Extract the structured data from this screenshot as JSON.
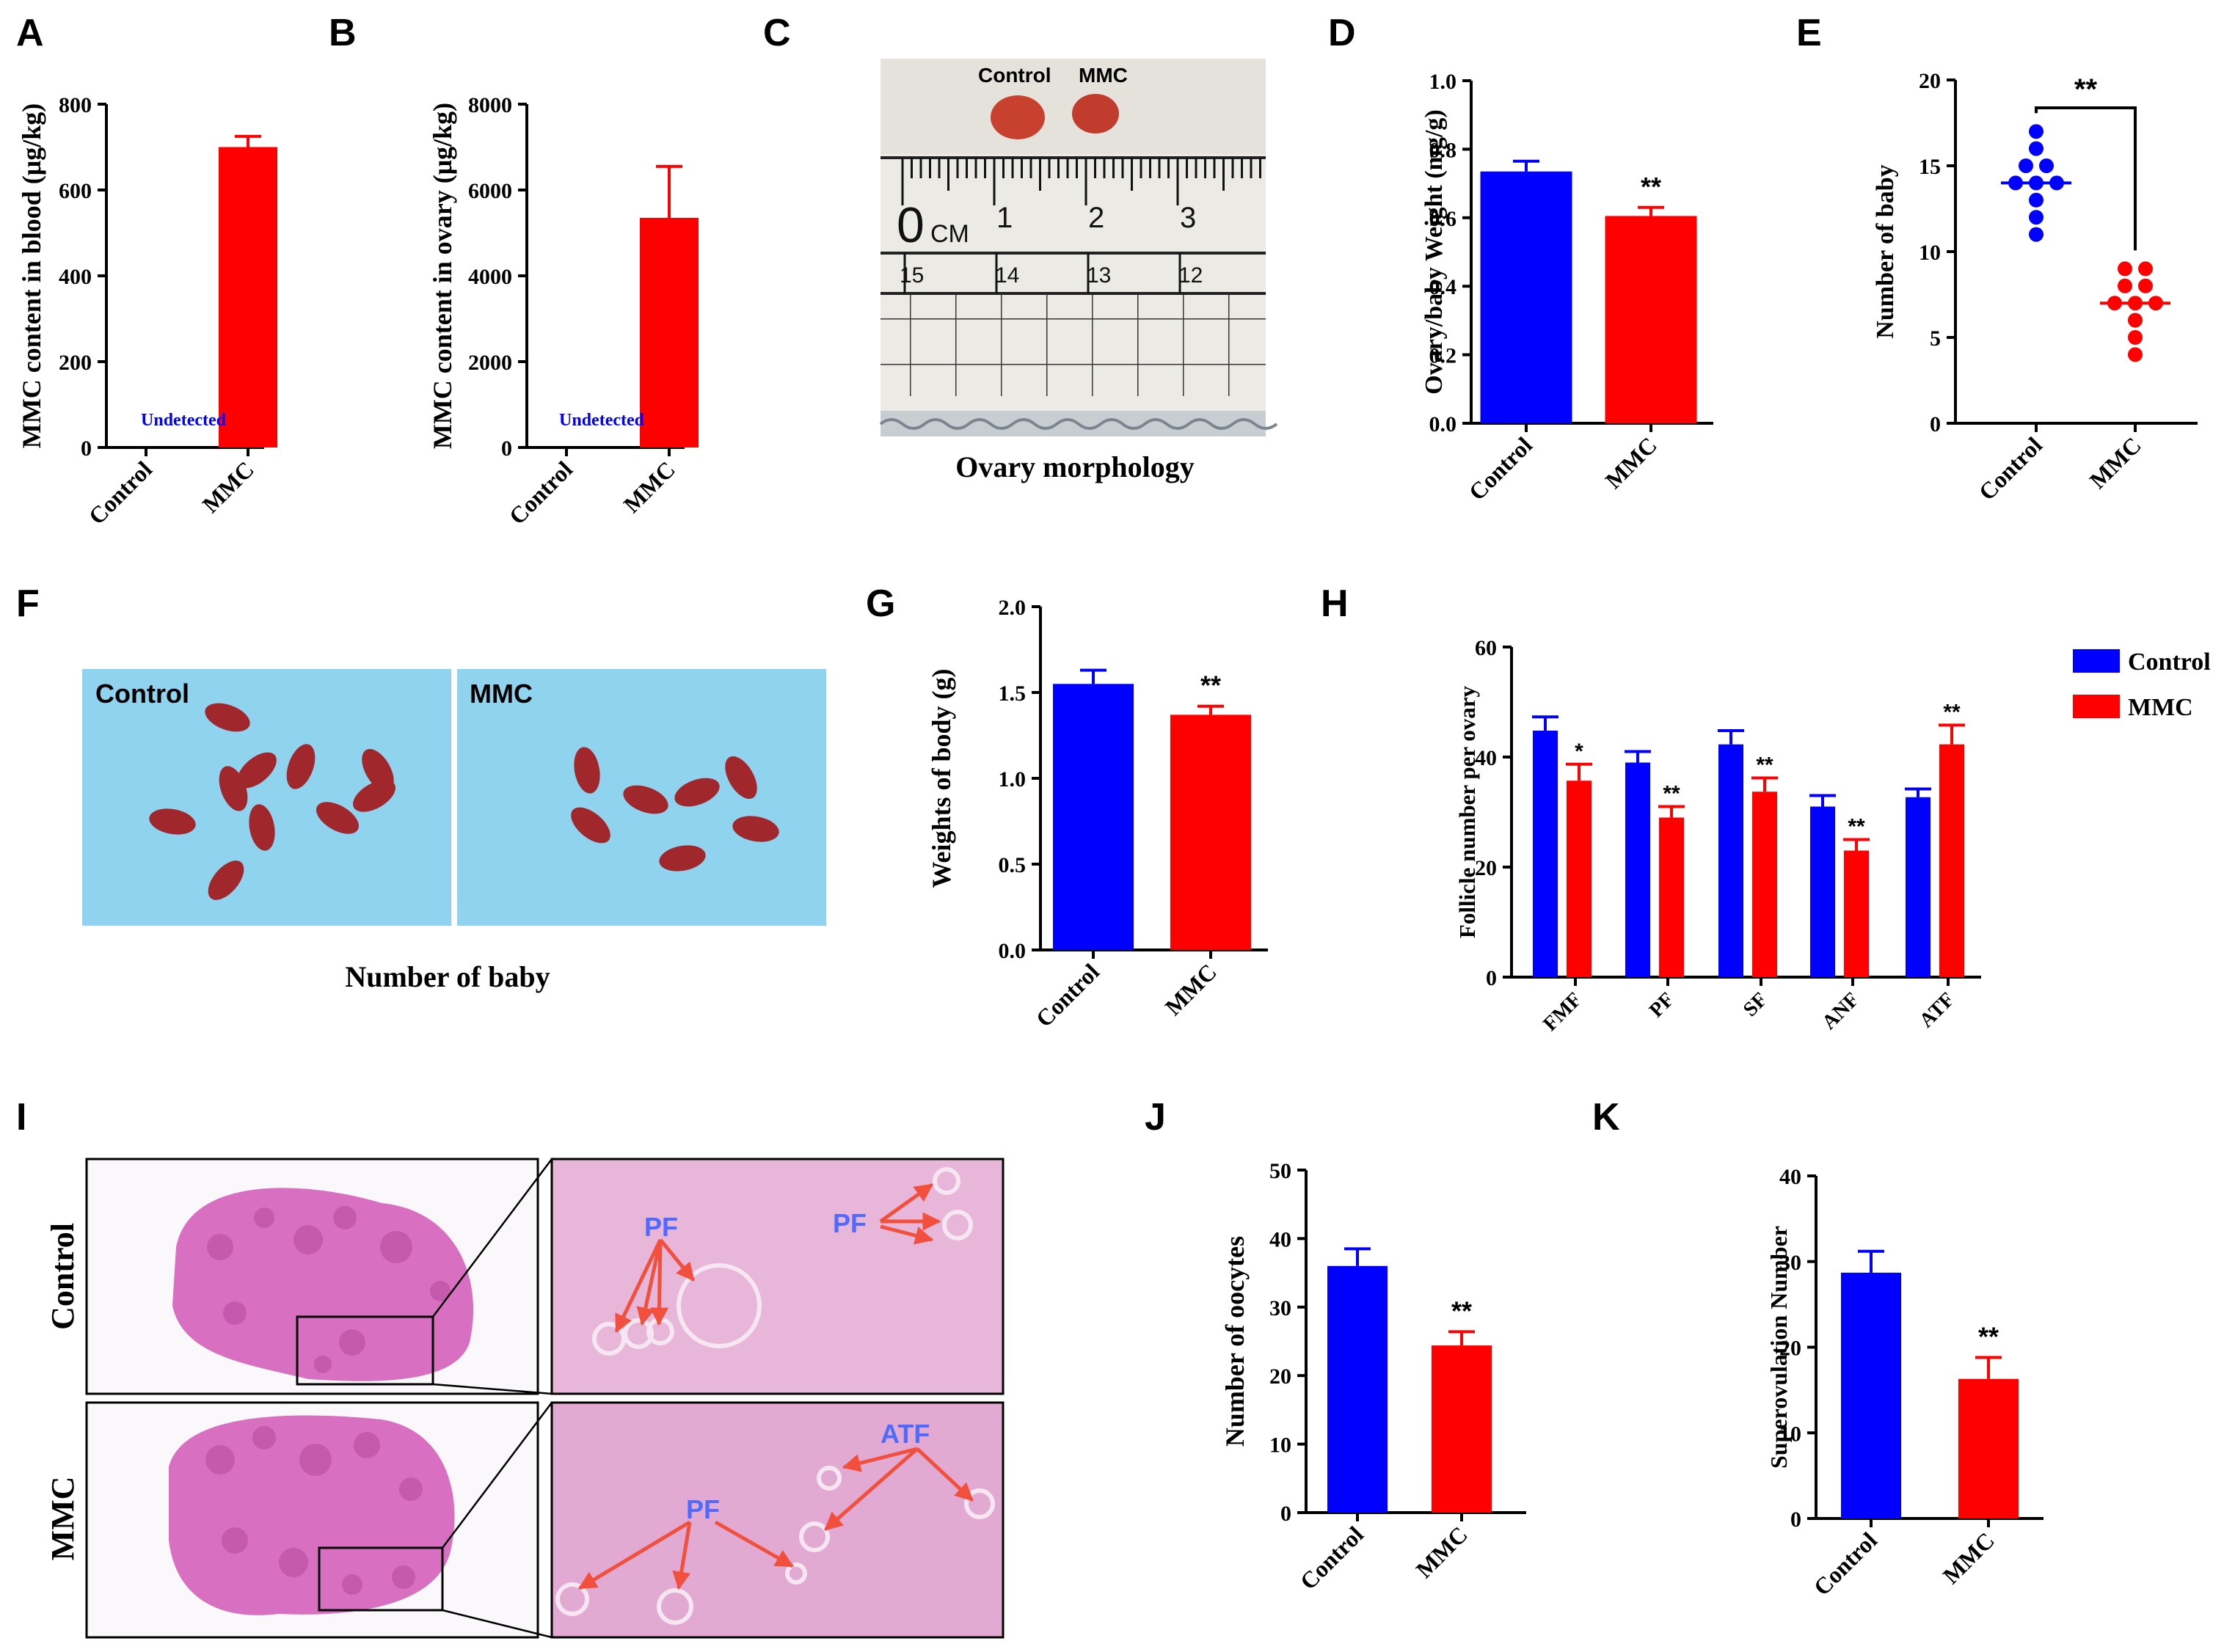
{
  "colors": {
    "control": "#0000FF",
    "mmc": "#FF0000",
    "axis": "#000000",
    "pf_label": "#4F6BFF",
    "arrow": "#F0503C",
    "tissue": "#D96FC0",
    "photo_bg": "#8FD3EE"
  },
  "panel_letters": [
    "A",
    "B",
    "C",
    "D",
    "E",
    "F",
    "G",
    "H",
    "I",
    "J",
    "K"
  ],
  "chart_data": [
    {
      "id": "A",
      "type": "bar",
      "categories": [
        "Control",
        "MMC"
      ],
      "values": [
        null,
        700
      ],
      "errors": [
        null,
        25
      ],
      "ylabel": "MMC content in blood (μg/kg)",
      "ylim": [
        0,
        800
      ],
      "yticks": [
        0,
        200,
        400,
        600,
        800
      ],
      "annotation": "Undetected"
    },
    {
      "id": "B",
      "type": "bar",
      "categories": [
        "Control",
        "MMC"
      ],
      "values": [
        null,
        5350
      ],
      "errors": [
        null,
        1200
      ],
      "ylabel": "MMC content in ovary (μg/kg)",
      "ylim": [
        0,
        8000
      ],
      "yticks": [
        0,
        2000,
        4000,
        6000,
        8000
      ],
      "annotation": "Undetected"
    },
    {
      "id": "D",
      "type": "bar",
      "categories": [
        "Control",
        "MMC"
      ],
      "values": [
        0.735,
        0.605
      ],
      "errors": [
        0.03,
        0.025
      ],
      "ylabel": "Ovary/baby Weight (mg/g)",
      "ylim": [
        0,
        1.0
      ],
      "yticks": [
        "0.0",
        "0.2",
        "0.4",
        "0.6",
        "0.8",
        "1.0"
      ],
      "significance": [
        "",
        "**"
      ]
    },
    {
      "id": "E",
      "type": "scatter",
      "categories": [
        "Control",
        "MMC"
      ],
      "points": [
        [
          11,
          12,
          13,
          14,
          14,
          14,
          15,
          15,
          16,
          17
        ],
        [
          4,
          5,
          6,
          7,
          7,
          7,
          8,
          8,
          9,
          9
        ]
      ],
      "means": [
        14,
        7
      ],
      "ylabel": "Number of baby",
      "ylim": [
        0,
        20
      ],
      "yticks": [
        0,
        5,
        10,
        15,
        20
      ],
      "significance": "**"
    },
    {
      "id": "G",
      "type": "bar",
      "categories": [
        "Control",
        "MMC"
      ],
      "values": [
        1.55,
        1.37
      ],
      "errors": [
        0.08,
        0.05
      ],
      "ylabel": "Weights of body (g)",
      "ylim": [
        0,
        2.0
      ],
      "yticks": [
        "0.0",
        "0.5",
        "1.0",
        "1.5",
        "2.0"
      ],
      "significance": [
        "",
        "**"
      ]
    },
    {
      "id": "H",
      "type": "bar",
      "categories": [
        "FMF",
        "PF",
        "SF",
        "ANF",
        "ATF"
      ],
      "series": [
        {
          "name": "Control",
          "values": [
            44.8,
            39.0,
            42.3,
            31.0,
            32.7
          ],
          "errors": [
            2.5,
            2.0,
            2.5,
            2.0,
            1.5
          ]
        },
        {
          "name": "MMC",
          "values": [
            35.7,
            29.0,
            33.7,
            23.0,
            42.3
          ],
          "errors": [
            3.0,
            2.0,
            2.5,
            2.0,
            3.5
          ]
        }
      ],
      "significance": [
        "*",
        "**",
        "**",
        "**",
        "**"
      ],
      "ylabel": "Follicle number per ovary",
      "ylim": [
        0,
        60
      ],
      "yticks": [
        0,
        20,
        40,
        60
      ],
      "legend": "right"
    },
    {
      "id": "J",
      "type": "bar",
      "categories": [
        "Control",
        "MMC"
      ],
      "values": [
        36,
        24.4
      ],
      "errors": [
        2.5,
        2.0
      ],
      "ylabel": "Number of oocytes",
      "ylim": [
        0,
        50
      ],
      "yticks": [
        0,
        10,
        20,
        30,
        40,
        50
      ],
      "significance": [
        "",
        "**"
      ]
    },
    {
      "id": "K",
      "type": "bar",
      "categories": [
        "Control",
        "MMC"
      ],
      "values": [
        28.7,
        16.3
      ],
      "errors": [
        2.5,
        2.5
      ],
      "ylabel": "Superovulation Number",
      "ylim": [
        0,
        40
      ],
      "yticks": [
        0,
        10,
        20,
        30,
        40
      ],
      "significance": [
        "",
        "**"
      ]
    }
  ],
  "panel_c": {
    "labels": [
      "Control",
      "MMC"
    ],
    "ruler_top": [
      "0",
      "CM",
      "1",
      "2",
      "3"
    ],
    "ruler_bottom": [
      "15",
      "14",
      "13",
      "12"
    ],
    "caption": "Ovary morphology"
  },
  "panel_f": {
    "labels": [
      "Control",
      "MMC"
    ],
    "caption": "Number of baby"
  },
  "panel_i": {
    "row_labels": [
      "Control",
      "MMC"
    ],
    "annotations_control": [
      "PF",
      "PF"
    ],
    "annotations_mmc": [
      "ATF",
      "PF"
    ]
  }
}
